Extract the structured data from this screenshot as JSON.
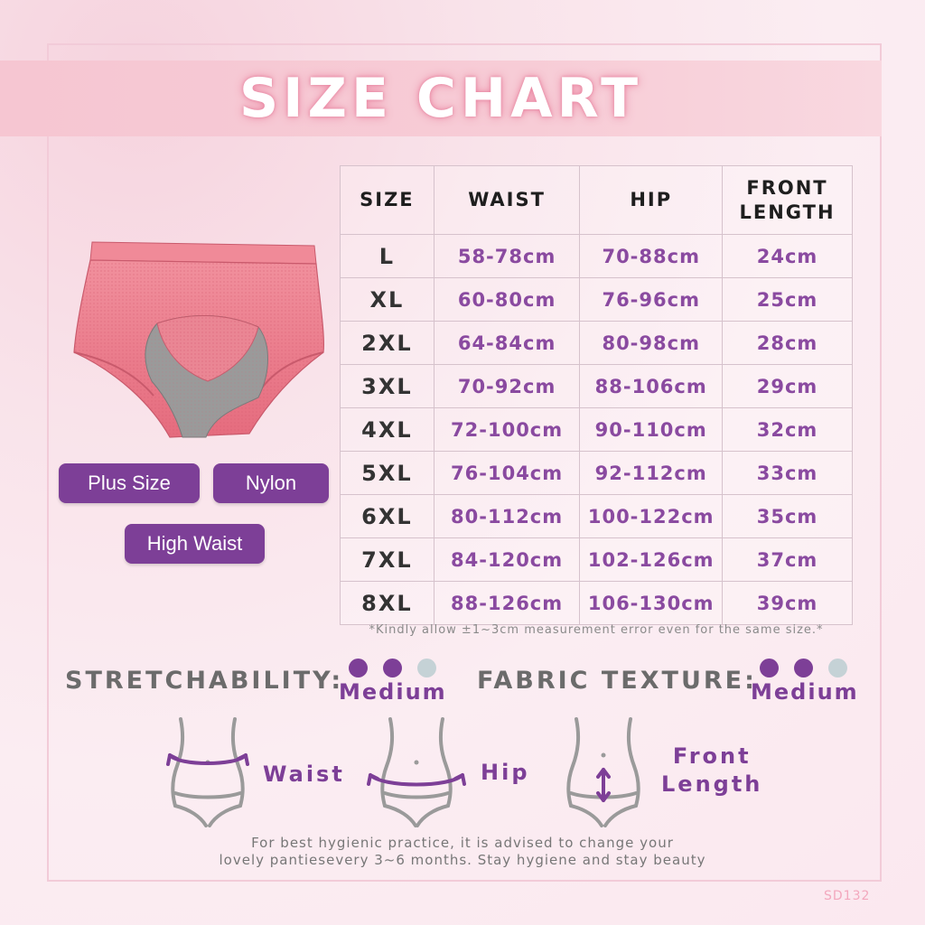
{
  "title": "SIZE CHART",
  "table": {
    "headers": [
      "SIZE",
      "WAIST",
      "HIP",
      "FRONT LENGTH"
    ],
    "rows": [
      [
        "L",
        "58-78cm",
        "70-88cm",
        "24cm"
      ],
      [
        "XL",
        "60-80cm",
        "76-96cm",
        "25cm"
      ],
      [
        "2XL",
        "64-84cm",
        "80-98cm",
        "28cm"
      ],
      [
        "3XL",
        "70-92cm",
        "88-106cm",
        "29cm"
      ],
      [
        "4XL",
        "72-100cm",
        "90-110cm",
        "32cm"
      ],
      [
        "5XL",
        "76-104cm",
        "92-112cm",
        "33cm"
      ],
      [
        "6XL",
        "80-112cm",
        "100-122cm",
        "35cm"
      ],
      [
        "7XL",
        "84-120cm",
        "102-126cm",
        "37cm"
      ],
      [
        "8XL",
        "88-126cm",
        "106-130cm",
        "39cm"
      ]
    ],
    "note": "*Kindly allow ±1~3cm measurement error even for the same size.*"
  },
  "tags": {
    "plus_size": "Plus Size",
    "nylon": "Nylon",
    "high_waist": "High Waist"
  },
  "ratings": {
    "stretch": {
      "label": "STRETCHABILITY:",
      "value": "Medium",
      "level": 2,
      "max": 3
    },
    "texture": {
      "label": "FABRIC TEXTURE:",
      "value": "Medium",
      "level": 2,
      "max": 3
    }
  },
  "measures": {
    "waist": "Waist",
    "hip": "Hip",
    "front_line1": "Front",
    "front_line2": "Length"
  },
  "footer": {
    "line1": "For best hygienic practice, it is advised to change your",
    "line2": "lovely pantiesevery 3~6 months. Stay hygiene and stay beauty"
  },
  "code": "SD132",
  "colors": {
    "accent": "#7d3f97",
    "product": "#ee7b8c",
    "gusset": "#9a9a9a",
    "dot_off": "#c5d2d6"
  }
}
